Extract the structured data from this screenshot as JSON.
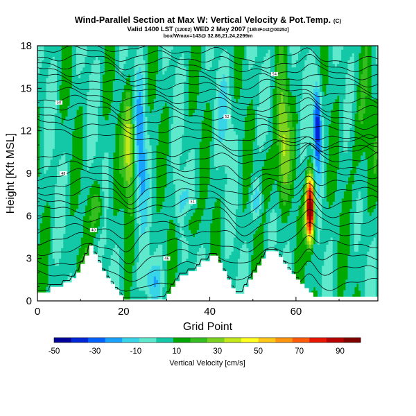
{
  "titles": {
    "main": "Wind-Parallel Section at Max W: Vertical Velocity & Pot.Temp.",
    "main_badge": "(C)",
    "valid_prefix": "Valid 1400 LST",
    "valid_small": "(12002)",
    "valid_date": "WED 2 May 2007",
    "valid_suffix": "[18hrFcst@0025z]",
    "subline": "box/Wmax=143@ 32.86,21.24,2299m"
  },
  "chart_data": {
    "type": "heatmap",
    "xlabel": "Grid Point",
    "ylabel": "Height [Kft MSL]",
    "xlim": [
      0,
      79
    ],
    "ylim": [
      0,
      18
    ],
    "x_ticks": [
      0,
      20,
      40,
      60
    ],
    "y_ticks": [
      0,
      3,
      6,
      9,
      12,
      15,
      18
    ],
    "colorbar": {
      "title": "Vertical Velocity [cm/s]",
      "tick_labels": [
        "-50",
        "-30",
        "-10",
        "10",
        "30",
        "50",
        "70",
        "90"
      ],
      "range": [
        -50,
        100
      ],
      "colors": [
        "#00009a",
        "#0026d8",
        "#0062ff",
        "#1aa2ff",
        "#38d4e8",
        "#5ee8cc",
        "#12c8a6",
        "#00a800",
        "#34be20",
        "#7cd21e",
        "#c4e81a",
        "#ffff20",
        "#ffc818",
        "#ff9410",
        "#ff5a08",
        "#e81500",
        "#b80000",
        "#800000"
      ]
    },
    "terrain": [
      [
        0,
        0.6
      ],
      [
        3,
        0.6
      ],
      [
        3,
        1
      ],
      [
        6,
        1
      ],
      [
        6,
        1.3
      ],
      [
        8,
        1.3
      ],
      [
        8,
        1.6
      ],
      [
        9,
        1.6
      ],
      [
        9,
        2
      ],
      [
        10,
        2
      ],
      [
        10,
        2.6
      ],
      [
        11,
        2.6
      ],
      [
        11,
        3.2
      ],
      [
        12,
        3.2
      ],
      [
        12,
        3.9
      ],
      [
        13,
        3.9
      ],
      [
        13,
        3.3
      ],
      [
        14,
        3.3
      ],
      [
        14,
        2.7
      ],
      [
        15,
        2.7
      ],
      [
        15,
        2.1
      ],
      [
        16,
        2.1
      ],
      [
        16,
        1.6
      ],
      [
        17,
        1.6
      ],
      [
        17,
        1.2
      ],
      [
        18,
        1.2
      ],
      [
        18,
        0.8
      ],
      [
        19,
        0.8
      ],
      [
        19,
        0.4
      ],
      [
        20,
        0.4
      ],
      [
        20,
        0.1
      ],
      [
        30,
        0.1
      ],
      [
        30,
        0.5
      ],
      [
        31,
        0.5
      ],
      [
        31,
        1
      ],
      [
        32,
        1
      ],
      [
        32,
        1.4
      ],
      [
        33,
        1.4
      ],
      [
        33,
        1.8
      ],
      [
        35,
        1.8
      ],
      [
        35,
        2.1
      ],
      [
        37,
        2.1
      ],
      [
        37,
        2.4
      ],
      [
        38,
        2.4
      ],
      [
        38,
        2.8
      ],
      [
        40,
        2.8
      ],
      [
        40,
        3.2
      ],
      [
        42,
        3.2
      ],
      [
        42,
        2.7
      ],
      [
        43,
        2.7
      ],
      [
        43,
        2.1
      ],
      [
        44,
        2.1
      ],
      [
        44,
        1.5
      ],
      [
        45,
        1.5
      ],
      [
        45,
        0.9
      ],
      [
        46,
        0.9
      ],
      [
        46,
        0.5
      ],
      [
        48,
        0.5
      ],
      [
        48,
        1
      ],
      [
        49,
        1
      ],
      [
        49,
        1.5
      ],
      [
        50,
        1.5
      ],
      [
        50,
        2
      ],
      [
        51,
        2
      ],
      [
        51,
        2.5
      ],
      [
        52,
        2.5
      ],
      [
        52,
        3
      ],
      [
        53,
        3
      ],
      [
        53,
        3.5
      ],
      [
        56,
        3.5
      ],
      [
        56,
        3.1
      ],
      [
        57,
        3.1
      ],
      [
        57,
        2.6
      ],
      [
        58,
        2.6
      ],
      [
        58,
        2.2
      ],
      [
        59,
        2.2
      ],
      [
        59,
        1.9
      ],
      [
        60,
        1.9
      ],
      [
        60,
        1.5
      ],
      [
        61,
        1.5
      ],
      [
        61,
        1.2
      ],
      [
        62,
        1.2
      ],
      [
        62,
        0.9
      ],
      [
        63,
        0.9
      ],
      [
        63,
        0.6
      ],
      [
        64,
        0.6
      ],
      [
        64,
        0.3
      ],
      [
        79,
        0.3
      ]
    ],
    "isentrope_labels": [
      "40",
      "46",
      "48",
      "50",
      "51",
      "52",
      "54"
    ]
  }
}
